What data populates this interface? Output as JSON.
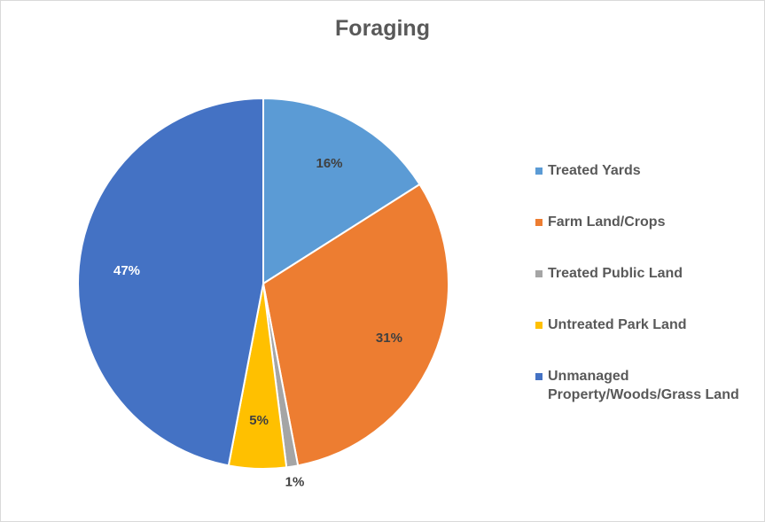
{
  "chart_data": {
    "type": "pie",
    "title": "Foraging",
    "categories": [
      "Treated Yards",
      "Farm Land/Crops",
      "Treated Public Land",
      "Untreated Park Land",
      "Unmanaged Property/Woods/Grass Land"
    ],
    "values": [
      16,
      31,
      1,
      5,
      47
    ],
    "data_labels": [
      "16%",
      "31%",
      "1%",
      "5%",
      "47%"
    ],
    "colors": [
      "#5b9bd5",
      "#ed7d31",
      "#a5a5a5",
      "#ffc000",
      "#4472c4"
    ],
    "legend_labels": [
      [
        "Treated Yards"
      ],
      [
        "Farm Land/Crops"
      ],
      [
        "Treated Public Land"
      ],
      [
        "Untreated Park Land"
      ],
      [
        "Unmanaged",
        "Property/Woods/Grass Land"
      ]
    ],
    "legend_position": "right"
  }
}
